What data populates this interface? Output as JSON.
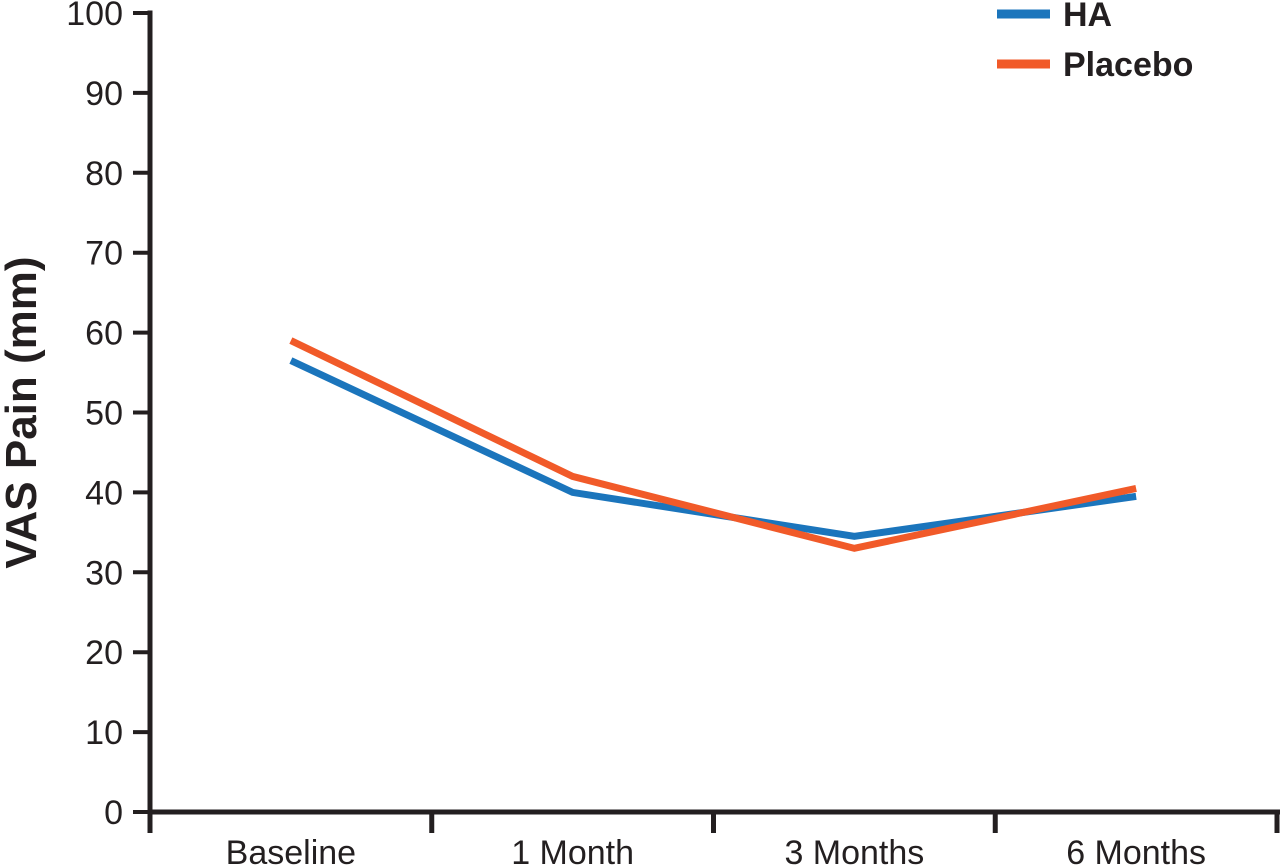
{
  "chart_data": {
    "type": "line",
    "title": "",
    "categories": [
      "Baseline",
      "1 Month",
      "3 Months",
      "6 Months"
    ],
    "series": [
      {
        "name": "HA",
        "color": "#1B75BC",
        "values": [
          56.5,
          40,
          34.5,
          39.5
        ]
      },
      {
        "name": "Placebo",
        "color": "#F15A29",
        "values": [
          59,
          42,
          33,
          40.5
        ]
      }
    ],
    "xlabel": "",
    "ylabel": "VAS Pain (mm)",
    "ylim": [
      0,
      100
    ],
    "ytick_step": 10,
    "yticks": [
      0,
      10,
      20,
      30,
      40,
      50,
      60,
      70,
      80,
      90,
      100
    ],
    "grid": false,
    "legend_position": "top-right",
    "line_width": 7
  },
  "colors": {
    "axis": "#231F20",
    "text": "#231F20",
    "background": "#FFFFFF",
    "series_ha": "#1B75BC",
    "series_placebo": "#F15A29"
  }
}
